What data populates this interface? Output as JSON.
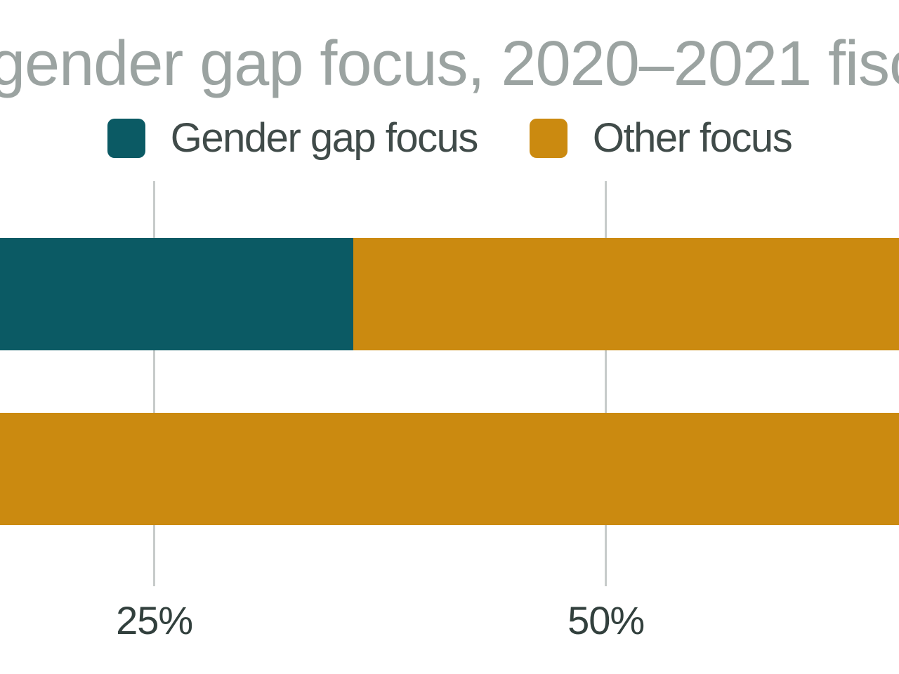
{
  "title": {
    "text": "gender gap focus, 2020–2021 fisc"
  },
  "legend": {
    "items": [
      {
        "label": "Gender gap focus",
        "color": "#0b5a64"
      },
      {
        "label": "Other focus",
        "color": "#cb8a10"
      }
    ]
  },
  "x_axis": {
    "ticks": [
      {
        "label": "25%",
        "value": 25
      },
      {
        "label": "50%",
        "value": 50
      }
    ]
  },
  "chart_data": {
    "type": "bar",
    "orientation": "horizontal",
    "stacked": true,
    "units": "percent",
    "title": "gender gap focus, 2020–2021 fisc",
    "categories": [
      "",
      ""
    ],
    "series": [
      {
        "name": "Gender gap focus",
        "color": "#0b5a64",
        "values": [
          36,
          0
        ]
      },
      {
        "name": "Other focus",
        "color": "#cb8a10",
        "values": [
          64,
          100
        ]
      }
    ],
    "x_ticks": [
      25,
      50
    ],
    "x_tick_labels": [
      "25%",
      "50%"
    ],
    "xlim_visible": [
      16.4,
      66.2
    ],
    "legend_position": "top",
    "grid": "vertical-gridlines",
    "bar_value_labels": "none",
    "category_labels_visible": false
  },
  "colors": {
    "background": "#ffffff",
    "title_text": "#9ba3a1",
    "legend_text": "#404b49",
    "tick_text": "#32403d",
    "gridline": "#c7cbca",
    "teal": "#0b5a64",
    "orange": "#cb8a10"
  }
}
